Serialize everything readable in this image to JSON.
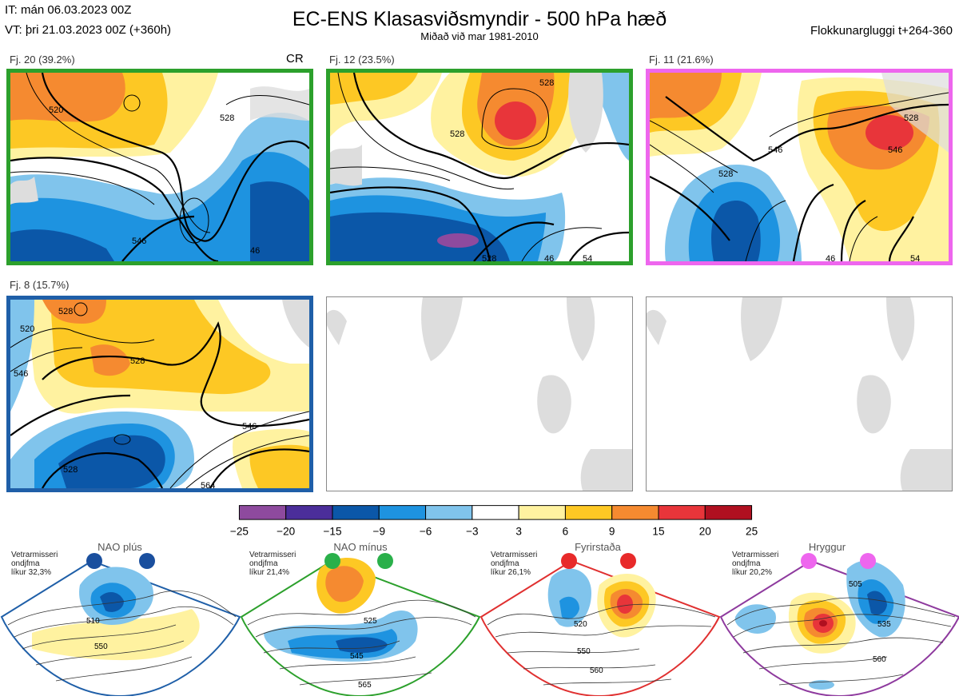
{
  "header": {
    "it_line": "IT: mán 06.03.2023 00Z",
    "vt_line": "VT: þri 21.03.2023 00Z  (+360h)",
    "title": "EC-ENS Klasasviðsmyndir - 500 hPa hæð",
    "subtitle": "Miðað við mar 1981-2010",
    "window": "Flokkunargluggi t+264-360"
  },
  "panels": [
    {
      "label": "Fj. 20 (39.2%)",
      "tag": "CR",
      "border": "#2ca02c",
      "contours": [
        "520",
        "528",
        "546",
        "46"
      ]
    },
    {
      "label": "Fj. 12 (23.5%)",
      "tag": "",
      "border": "#2ca02c",
      "contours": [
        "528",
        "528",
        "528",
        "46",
        "54"
      ]
    },
    {
      "label": "Fj. 11 (21.6%)",
      "tag": "",
      "border": "#ee66ee",
      "contours": [
        "528",
        "546",
        "528",
        "546",
        "46",
        "54"
      ]
    },
    {
      "label": "Fj. 8 (15.7%)",
      "tag": "",
      "border": "#1f5fa8",
      "contours": [
        "520",
        "528",
        "528",
        "546",
        "528",
        "546",
        "564"
      ]
    }
  ],
  "colorbar": {
    "ticks": [
      "−25",
      "−20",
      "−15",
      "−9",
      "−6",
      "−3",
      "3",
      "6",
      "9",
      "15",
      "20",
      "25"
    ],
    "colors": [
      "#8e4a9e",
      "#4b2e9a",
      "#0b57a8",
      "#1e93e0",
      "#80c4ec",
      "#ffffff",
      "#fff2a0",
      "#fdc824",
      "#f58a30",
      "#e8353a",
      "#b01020"
    ]
  },
  "regimes": [
    {
      "name": "NAO plús",
      "note": [
        "Vetrarmisseri",
        "ondjfma",
        "líkur 32,3%"
      ],
      "color": "#1f5fa8",
      "dot": "#1a4f9e",
      "labels": [
        "510",
        "550"
      ]
    },
    {
      "name": "NAO mínus",
      "note": [
        "Vetrarmisseri",
        "ondjfma",
        "líkur 21,4%"
      ],
      "color": "#2ca02c",
      "dot": "#2ab04a",
      "labels": [
        "525",
        "545",
        "565"
      ]
    },
    {
      "name": "Fyrirstaða",
      "note": [
        "Vetrarmisseri",
        "ondjfma",
        "líkur 26,1%"
      ],
      "color": "#e03030",
      "dot": "#e82a2a",
      "labels": [
        "520",
        "550",
        "560"
      ]
    },
    {
      "name": "Hryggur",
      "note": [
        "Vetrarmisseri",
        "ondjfma",
        "líkur 20,2%"
      ],
      "color": "#8e3a9e",
      "dot": "#ee66ee",
      "labels": [
        "505",
        "535",
        "560"
      ]
    }
  ]
}
